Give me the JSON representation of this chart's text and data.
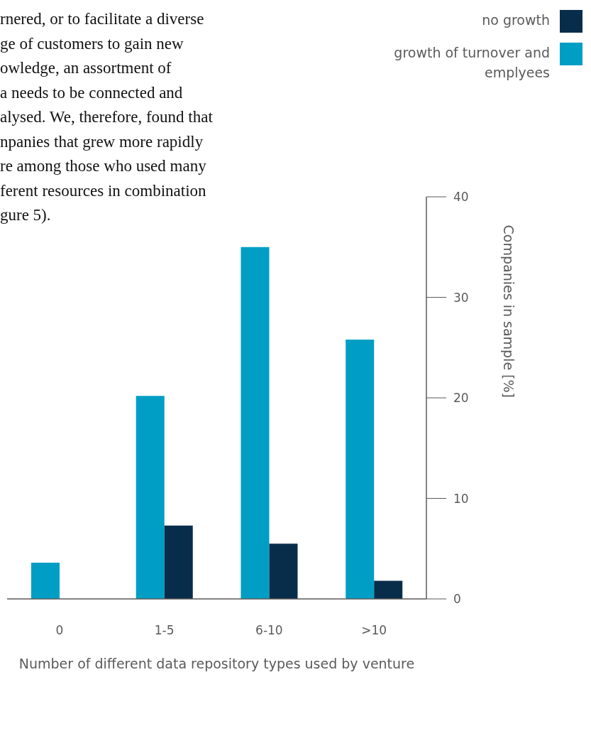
{
  "chart_data": {
    "type": "bar",
    "xlabel": "Number of different data repository types used by venture",
    "ylabel": "Companies in sample [%]",
    "annotations": [
      "rnered, or to facilitate a diverse",
      "ge of customers to gain new",
      "owledge, an assortment of",
      "a needs to be connected and",
      "alysed. We, therefore, found that",
      "npanies that grew more rapidly",
      "re among those who used many",
      "ferent resources in combination",
      "gure 5)."
    ],
    "categories": [
      "0",
      "1-5",
      "6-10",
      ">10"
    ],
    "series": [
      {
        "name": "growth of turnover and emplyees",
        "color": "#009ec4",
        "values": [
          3.6,
          20.2,
          35.0,
          25.8
        ]
      },
      {
        "name": "no growth",
        "color": "#082d4a",
        "values": [
          null,
          7.3,
          5.5,
          1.8
        ]
      }
    ],
    "ylim": [
      0,
      40
    ],
    "yticks": [
      0,
      10,
      20,
      30,
      40
    ],
    "grid": false,
    "legend": "top right"
  }
}
